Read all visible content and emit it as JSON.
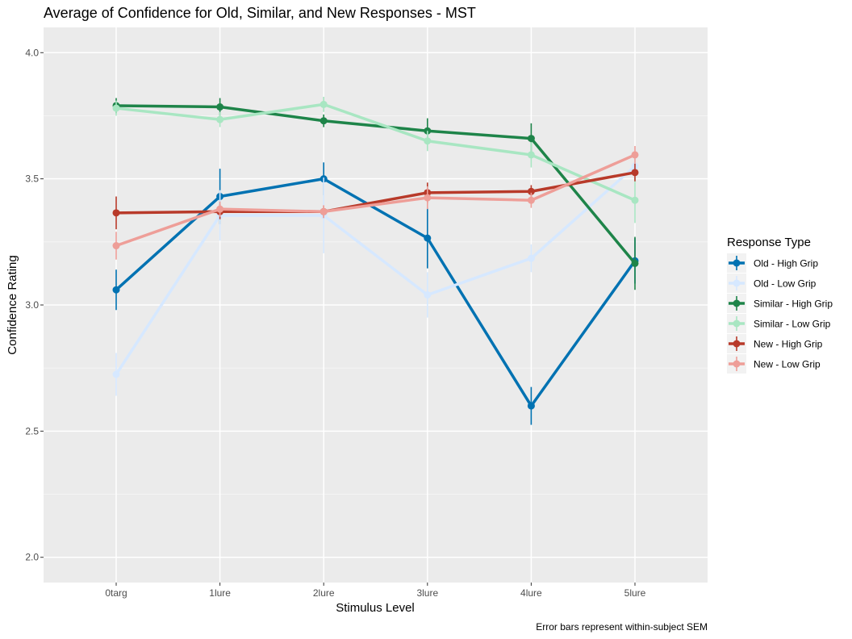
{
  "chart_data": {
    "type": "line",
    "title": "Average of Confidence for Old, Similar, and New Responses - MST",
    "xlabel": "Stimulus Level",
    "ylabel": "Confidence Rating",
    "caption": "Error bars represent within-subject SEM",
    "categories": [
      "0targ",
      "1lure",
      "2lure",
      "3lure",
      "4lure",
      "5lure"
    ],
    "ylim": [
      1.9,
      4.1
    ],
    "yticks": [
      2.0,
      2.5,
      3.0,
      3.5,
      4.0
    ],
    "ytick_labels": [
      "2.0",
      "2.5",
      "3.0",
      "3.5",
      "4.0"
    ],
    "legend_title": "Response Type",
    "legend_position": "right",
    "series": [
      {
        "name": "Old - High Grip",
        "color": "#0072B2",
        "values": [
          3.06,
          3.43,
          3.5,
          3.265,
          2.6,
          3.175
        ],
        "errors": [
          0.08,
          0.11,
          0.065,
          0.12,
          0.075,
          0.09
        ]
      },
      {
        "name": "Old - Low Grip",
        "color": "#D6E8FF",
        "values": [
          2.725,
          3.355,
          3.355,
          3.04,
          3.185,
          3.55
        ],
        "errors": [
          0.085,
          0.1,
          0.15,
          0.09,
          0.055,
          0.05
        ]
      },
      {
        "name": "Similar - High Grip",
        "color": "#1E8449",
        "values": [
          3.79,
          3.785,
          3.73,
          3.69,
          3.66,
          3.165
        ],
        "errors": [
          0.03,
          0.035,
          0.025,
          0.05,
          0.06,
          0.105
        ]
      },
      {
        "name": "Similar - Low Grip",
        "color": "#A8E6C2",
        "values": [
          3.78,
          3.735,
          3.795,
          3.65,
          3.595,
          3.415
        ],
        "errors": [
          0.03,
          0.03,
          0.03,
          0.04,
          0.05,
          0.09
        ]
      },
      {
        "name": "New - High Grip",
        "color": "#B83A2A",
        "values": [
          3.365,
          3.37,
          3.37,
          3.445,
          3.45,
          3.525
        ],
        "errors": [
          0.065,
          0.03,
          0.025,
          0.04,
          0.025,
          0.035
        ]
      },
      {
        "name": "New - Low Grip",
        "color": "#EE9E98",
        "values": [
          3.235,
          3.38,
          3.37,
          3.425,
          3.415,
          3.595
        ],
        "errors": [
          0.055,
          0.03,
          0.025,
          0.045,
          0.03,
          0.035
        ]
      }
    ]
  }
}
